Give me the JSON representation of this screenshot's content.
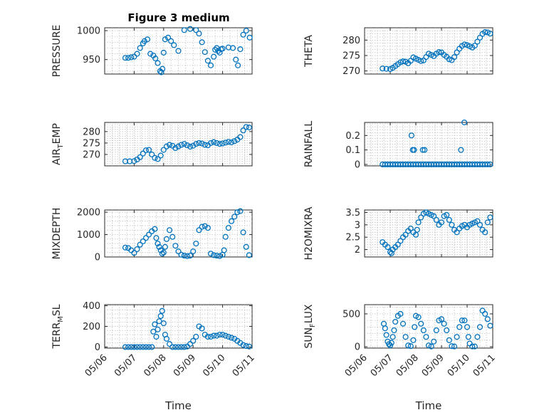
{
  "title": "Figure 3 medium",
  "colors": {
    "marker": "#0072BD",
    "axes": "#262626",
    "grid": "#b8b8b8"
  },
  "chart_data": [
    {
      "type": "scatter",
      "title": "Figure 3 medium",
      "ylabel": "PRESSURE",
      "xlabel": "",
      "xlim": [
        0,
        5
      ],
      "ylim": [
        925,
        1005
      ],
      "yticks": [
        950,
        1000
      ],
      "xtick_labels": [],
      "x": [
        0.7,
        0.8,
        0.9,
        1.0,
        1.1,
        1.2,
        1.3,
        1.35,
        1.45,
        1.55,
        1.65,
        1.72,
        1.8,
        1.88,
        1.92,
        1.96,
        2.0,
        2.05,
        2.15,
        2.25,
        2.35,
        2.5,
        2.7,
        2.9,
        3.1,
        3.2,
        3.3,
        3.4,
        3.5,
        3.6,
        3.7,
        3.75,
        3.8,
        3.85,
        3.9,
        3.95,
        4.0,
        4.2,
        4.35,
        4.45,
        4.52,
        4.6,
        4.7,
        4.8,
        4.92
      ],
      "y": [
        953,
        953,
        954,
        955,
        960,
        970,
        978,
        982,
        985,
        960,
        957,
        952,
        944,
        930,
        928,
        934,
        962,
        985,
        988,
        982,
        975,
        965,
        1001,
        1003,
        1001,
        995,
        980,
        963,
        948,
        940,
        955,
        967,
        970,
        965,
        962,
        968,
        969,
        971,
        970,
        950,
        940,
        968,
        993,
        1000,
        988
      ]
    },
    {
      "type": "scatter",
      "ylabel": "THETA",
      "xlabel": "",
      "xlim": [
        0,
        5
      ],
      "ylim": [
        269,
        284
      ],
      "yticks": [
        270,
        275,
        280
      ],
      "xtick_labels": [],
      "x": [
        0.7,
        0.85,
        1.0,
        1.1,
        1.2,
        1.3,
        1.4,
        1.5,
        1.6,
        1.7,
        1.8,
        1.9,
        2.0,
        2.1,
        2.2,
        2.3,
        2.4,
        2.5,
        2.6,
        2.7,
        2.8,
        2.9,
        3.0,
        3.1,
        3.2,
        3.3,
        3.4,
        3.5,
        3.6,
        3.7,
        3.8,
        3.9,
        4.0,
        4.1,
        4.2,
        4.3,
        4.4,
        4.5,
        4.6,
        4.7,
        4.8,
        4.9
      ],
      "y": [
        270.8,
        270.7,
        270.6,
        271.0,
        271.6,
        272.2,
        272.8,
        273.1,
        273.0,
        272.5,
        273.3,
        274.4,
        274.0,
        273.6,
        273.2,
        273.4,
        274.5,
        275.6,
        275.2,
        274.8,
        275.6,
        276.1,
        276.0,
        275.2,
        274.6,
        273.8,
        273.5,
        274.5,
        276.0,
        277.2,
        278.1,
        278.6,
        278.4,
        278.0,
        277.6,
        278.2,
        279.5,
        280.8,
        282.0,
        282.6,
        282.5,
        282.1
      ]
    },
    {
      "type": "scatter",
      "ylabel": "AIRTEMP",
      "xlabel": "",
      "xlim": [
        0,
        5
      ],
      "ylim": [
        265,
        284
      ],
      "yticks": [
        270,
        275,
        280
      ],
      "xtick_labels": [],
      "x": [
        0.7,
        0.85,
        1.0,
        1.1,
        1.2,
        1.3,
        1.4,
        1.5,
        1.6,
        1.7,
        1.8,
        1.9,
        2.0,
        2.1,
        2.2,
        2.3,
        2.4,
        2.5,
        2.6,
        2.7,
        2.8,
        2.9,
        3.0,
        3.1,
        3.2,
        3.3,
        3.4,
        3.5,
        3.6,
        3.7,
        3.8,
        3.9,
        4.0,
        4.1,
        4.2,
        4.3,
        4.4,
        4.5,
        4.6,
        4.7,
        4.8,
        4.9
      ],
      "y": [
        267.0,
        267.0,
        267.1,
        267.8,
        268.8,
        270.4,
        271.8,
        272.0,
        270.0,
        268.5,
        268.0,
        269.5,
        272.0,
        273.5,
        274.2,
        273.8,
        272.8,
        273.5,
        274.2,
        274.6,
        274.0,
        273.4,
        273.8,
        274.6,
        275.0,
        274.8,
        274.2,
        274.0,
        275.0,
        275.4,
        275.0,
        274.6,
        274.8,
        275.2,
        275.5,
        275.3,
        275.8,
        276.5,
        277.6,
        280.5,
        282.0,
        281.8
      ]
    },
    {
      "type": "scatter",
      "ylabel": "RAINFALL",
      "xlabel": "",
      "xlim": [
        0,
        5
      ],
      "ylim": [
        -0.01,
        0.29
      ],
      "yticks": [
        0,
        0.1,
        0.2
      ],
      "xtick_labels": [],
      "x": [
        0.7,
        0.8,
        0.9,
        1.0,
        1.1,
        1.2,
        1.3,
        1.4,
        1.5,
        1.6,
        1.7,
        1.8,
        1.9,
        2.0,
        2.1,
        2.2,
        2.3,
        2.4,
        2.5,
        2.6,
        2.7,
        2.8,
        2.9,
        3.0,
        3.1,
        3.2,
        3.3,
        3.4,
        3.5,
        3.6,
        3.7,
        3.8,
        3.9,
        4.0,
        4.1,
        4.2,
        4.3,
        4.4,
        4.5,
        4.6,
        4.7,
        4.8,
        4.9,
        1.83,
        1.88,
        1.93,
        2.27,
        2.34,
        3.76,
        3.89
      ],
      "y": [
        0,
        0,
        0,
        0,
        0,
        0,
        0,
        0,
        0,
        0,
        0,
        0,
        0,
        0,
        0,
        0,
        0,
        0,
        0,
        0,
        0,
        0,
        0,
        0,
        0,
        0,
        0,
        0,
        0,
        0,
        0,
        0,
        0,
        0,
        0,
        0,
        0,
        0,
        0,
        0,
        0,
        0,
        0,
        0.2,
        0.1,
        0.1,
        0.1,
        0.1,
        0.1,
        0.29
      ]
    },
    {
      "type": "scatter",
      "ylabel": "MIXDEPTH",
      "xlabel": "",
      "xlim": [
        0,
        5
      ],
      "ylim": [
        0,
        2100
      ],
      "yticks": [
        0,
        1000,
        2000
      ],
      "xtick_labels": [],
      "x": [
        0.7,
        0.8,
        0.9,
        1.0,
        1.1,
        1.2,
        1.3,
        1.4,
        1.5,
        1.6,
        1.7,
        1.75,
        1.8,
        1.85,
        1.9,
        1.95,
        2.0,
        2.05,
        2.1,
        2.2,
        2.3,
        2.4,
        2.5,
        2.6,
        2.7,
        2.8,
        2.9,
        3.0,
        3.1,
        3.2,
        3.3,
        3.4,
        3.5,
        3.6,
        3.7,
        3.8,
        3.9,
        4.0,
        4.05,
        4.1,
        4.2,
        4.3,
        4.4,
        4.5,
        4.6,
        4.7,
        4.8,
        4.9
      ],
      "y": [
        420,
        400,
        300,
        180,
        350,
        550,
        700,
        850,
        1000,
        1150,
        1250,
        850,
        600,
        450,
        300,
        150,
        200,
        450,
        800,
        1200,
        900,
        500,
        250,
        100,
        60,
        40,
        60,
        250,
        600,
        1200,
        1350,
        1380,
        1300,
        150,
        80,
        60,
        40,
        100,
        300,
        900,
        1300,
        1600,
        1800,
        2000,
        2050,
        1100,
        450,
        80
      ]
    },
    {
      "type": "scatter",
      "ylabel": "H2OMIXRA",
      "xlabel": "",
      "xlim": [
        0,
        5
      ],
      "ylim": [
        1.7,
        3.6
      ],
      "yticks": [
        2,
        2.5,
        3,
        3.5
      ],
      "xtick_labels": [],
      "x": [
        0.7,
        0.8,
        0.9,
        1.0,
        1.05,
        1.1,
        1.2,
        1.3,
        1.4,
        1.5,
        1.6,
        1.7,
        1.8,
        1.9,
        2.0,
        2.05,
        2.1,
        2.2,
        2.3,
        2.4,
        2.5,
        2.6,
        2.7,
        2.8,
        2.9,
        3.0,
        3.1,
        3.2,
        3.3,
        3.4,
        3.5,
        3.6,
        3.7,
        3.8,
        3.9,
        4.0,
        4.1,
        4.2,
        4.3,
        4.4,
        4.5,
        4.6,
        4.7,
        4.8,
        4.9
      ],
      "y": [
        2.3,
        2.2,
        2.1,
        1.9,
        1.85,
        2.0,
        2.1,
        2.2,
        2.35,
        2.5,
        2.6,
        2.75,
        2.85,
        2.7,
        2.6,
        2.8,
        3.1,
        3.3,
        3.45,
        3.5,
        3.45,
        3.4,
        3.35,
        3.2,
        3.0,
        3.1,
        3.35,
        3.4,
        3.2,
        3.0,
        2.8,
        2.7,
        2.85,
        2.95,
        3.0,
        2.9,
        3.0,
        3.05,
        3.1,
        3.15,
        3.0,
        2.8,
        2.7,
        3.1,
        3.3
      ]
    },
    {
      "type": "scatter",
      "ylabel": "TERRMSL",
      "xlabel": "Time",
      "xlim": [
        0,
        5
      ],
      "ylim": [
        -10,
        410
      ],
      "yticks": [
        0,
        200,
        400
      ],
      "xtick_labels": [
        "05/06",
        "05/07",
        "05/08",
        "05/09",
        "05/10",
        "05/11"
      ],
      "x": [
        0.7,
        0.8,
        0.9,
        1.0,
        1.1,
        1.2,
        1.3,
        1.4,
        1.5,
        1.6,
        1.65,
        1.7,
        1.75,
        1.8,
        1.85,
        1.9,
        1.95,
        2.0,
        2.05,
        2.1,
        2.2,
        2.3,
        2.4,
        2.5,
        2.6,
        2.7,
        2.8,
        2.9,
        3.0,
        3.1,
        3.2,
        3.3,
        3.4,
        3.5,
        3.6,
        3.7,
        3.8,
        3.9,
        4.0,
        4.1,
        4.2,
        4.3,
        4.4,
        4.5,
        4.6,
        4.7,
        4.8,
        4.9
      ],
      "y": [
        0,
        0,
        0,
        0,
        0,
        0,
        0,
        0,
        0,
        0,
        150,
        220,
        100,
        170,
        250,
        300,
        350,
        230,
        120,
        80,
        30,
        0,
        0,
        0,
        0,
        0,
        5,
        30,
        60,
        100,
        200,
        180,
        120,
        100,
        100,
        110,
        110,
        120,
        120,
        110,
        100,
        90,
        80,
        60,
        40,
        20,
        10,
        5
      ]
    },
    {
      "type": "scatter",
      "ylabel": "SUNFLUX",
      "xlabel": "Time",
      "xlim": [
        0,
        5
      ],
      "ylim": [
        -20,
        640
      ],
      "yticks": [
        0,
        500
      ],
      "xtick_labels": [
        "05/06",
        "05/07",
        "05/08",
        "05/09",
        "05/10",
        "05/11"
      ],
      "x": [
        0.75,
        0.8,
        0.85,
        0.9,
        0.95,
        1.0,
        1.05,
        1.1,
        1.15,
        1.2,
        1.3,
        1.4,
        1.5,
        1.6,
        1.7,
        1.8,
        1.9,
        1.95,
        2.0,
        2.1,
        2.2,
        2.3,
        2.4,
        2.5,
        2.6,
        2.7,
        2.8,
        2.9,
        3.0,
        3.1,
        3.2,
        3.3,
        3.4,
        3.5,
        3.6,
        3.7,
        3.8,
        3.9,
        4.0,
        4.05,
        4.1,
        4.2,
        4.3,
        4.4,
        4.5,
        4.6,
        4.7,
        4.8,
        4.9
      ],
      "y": [
        350,
        280,
        180,
        80,
        40,
        20,
        60,
        150,
        250,
        380,
        470,
        500,
        350,
        150,
        20,
        10,
        100,
        300,
        470,
        450,
        350,
        250,
        150,
        20,
        5,
        80,
        250,
        400,
        420,
        350,
        250,
        100,
        10,
        5,
        150,
        300,
        400,
        400,
        300,
        150,
        50,
        5,
        5,
        150,
        300,
        550,
        500,
        420,
        320
      ]
    }
  ],
  "panels": [
    {
      "ylabel_main": "PRESSURE",
      "ylabel_sub": "",
      "ylabel_tail": ""
    },
    {
      "ylabel_main": "THETA",
      "ylabel_sub": "",
      "ylabel_tail": ""
    },
    {
      "ylabel_main": "AIR",
      "ylabel_sub": "T",
      "ylabel_tail": "EMP"
    },
    {
      "ylabel_main": "RAINFALL",
      "ylabel_sub": "",
      "ylabel_tail": ""
    },
    {
      "ylabel_main": "MIXDEPTH",
      "ylabel_sub": "",
      "ylabel_tail": ""
    },
    {
      "ylabel_main": "H2OMIXRA",
      "ylabel_sub": "",
      "ylabel_tail": ""
    },
    {
      "ylabel_main": "TERR",
      "ylabel_sub": "M",
      "ylabel_tail": "SL"
    },
    {
      "ylabel_main": "SUN",
      "ylabel_sub": "F",
      "ylabel_tail": "LUX"
    }
  ]
}
